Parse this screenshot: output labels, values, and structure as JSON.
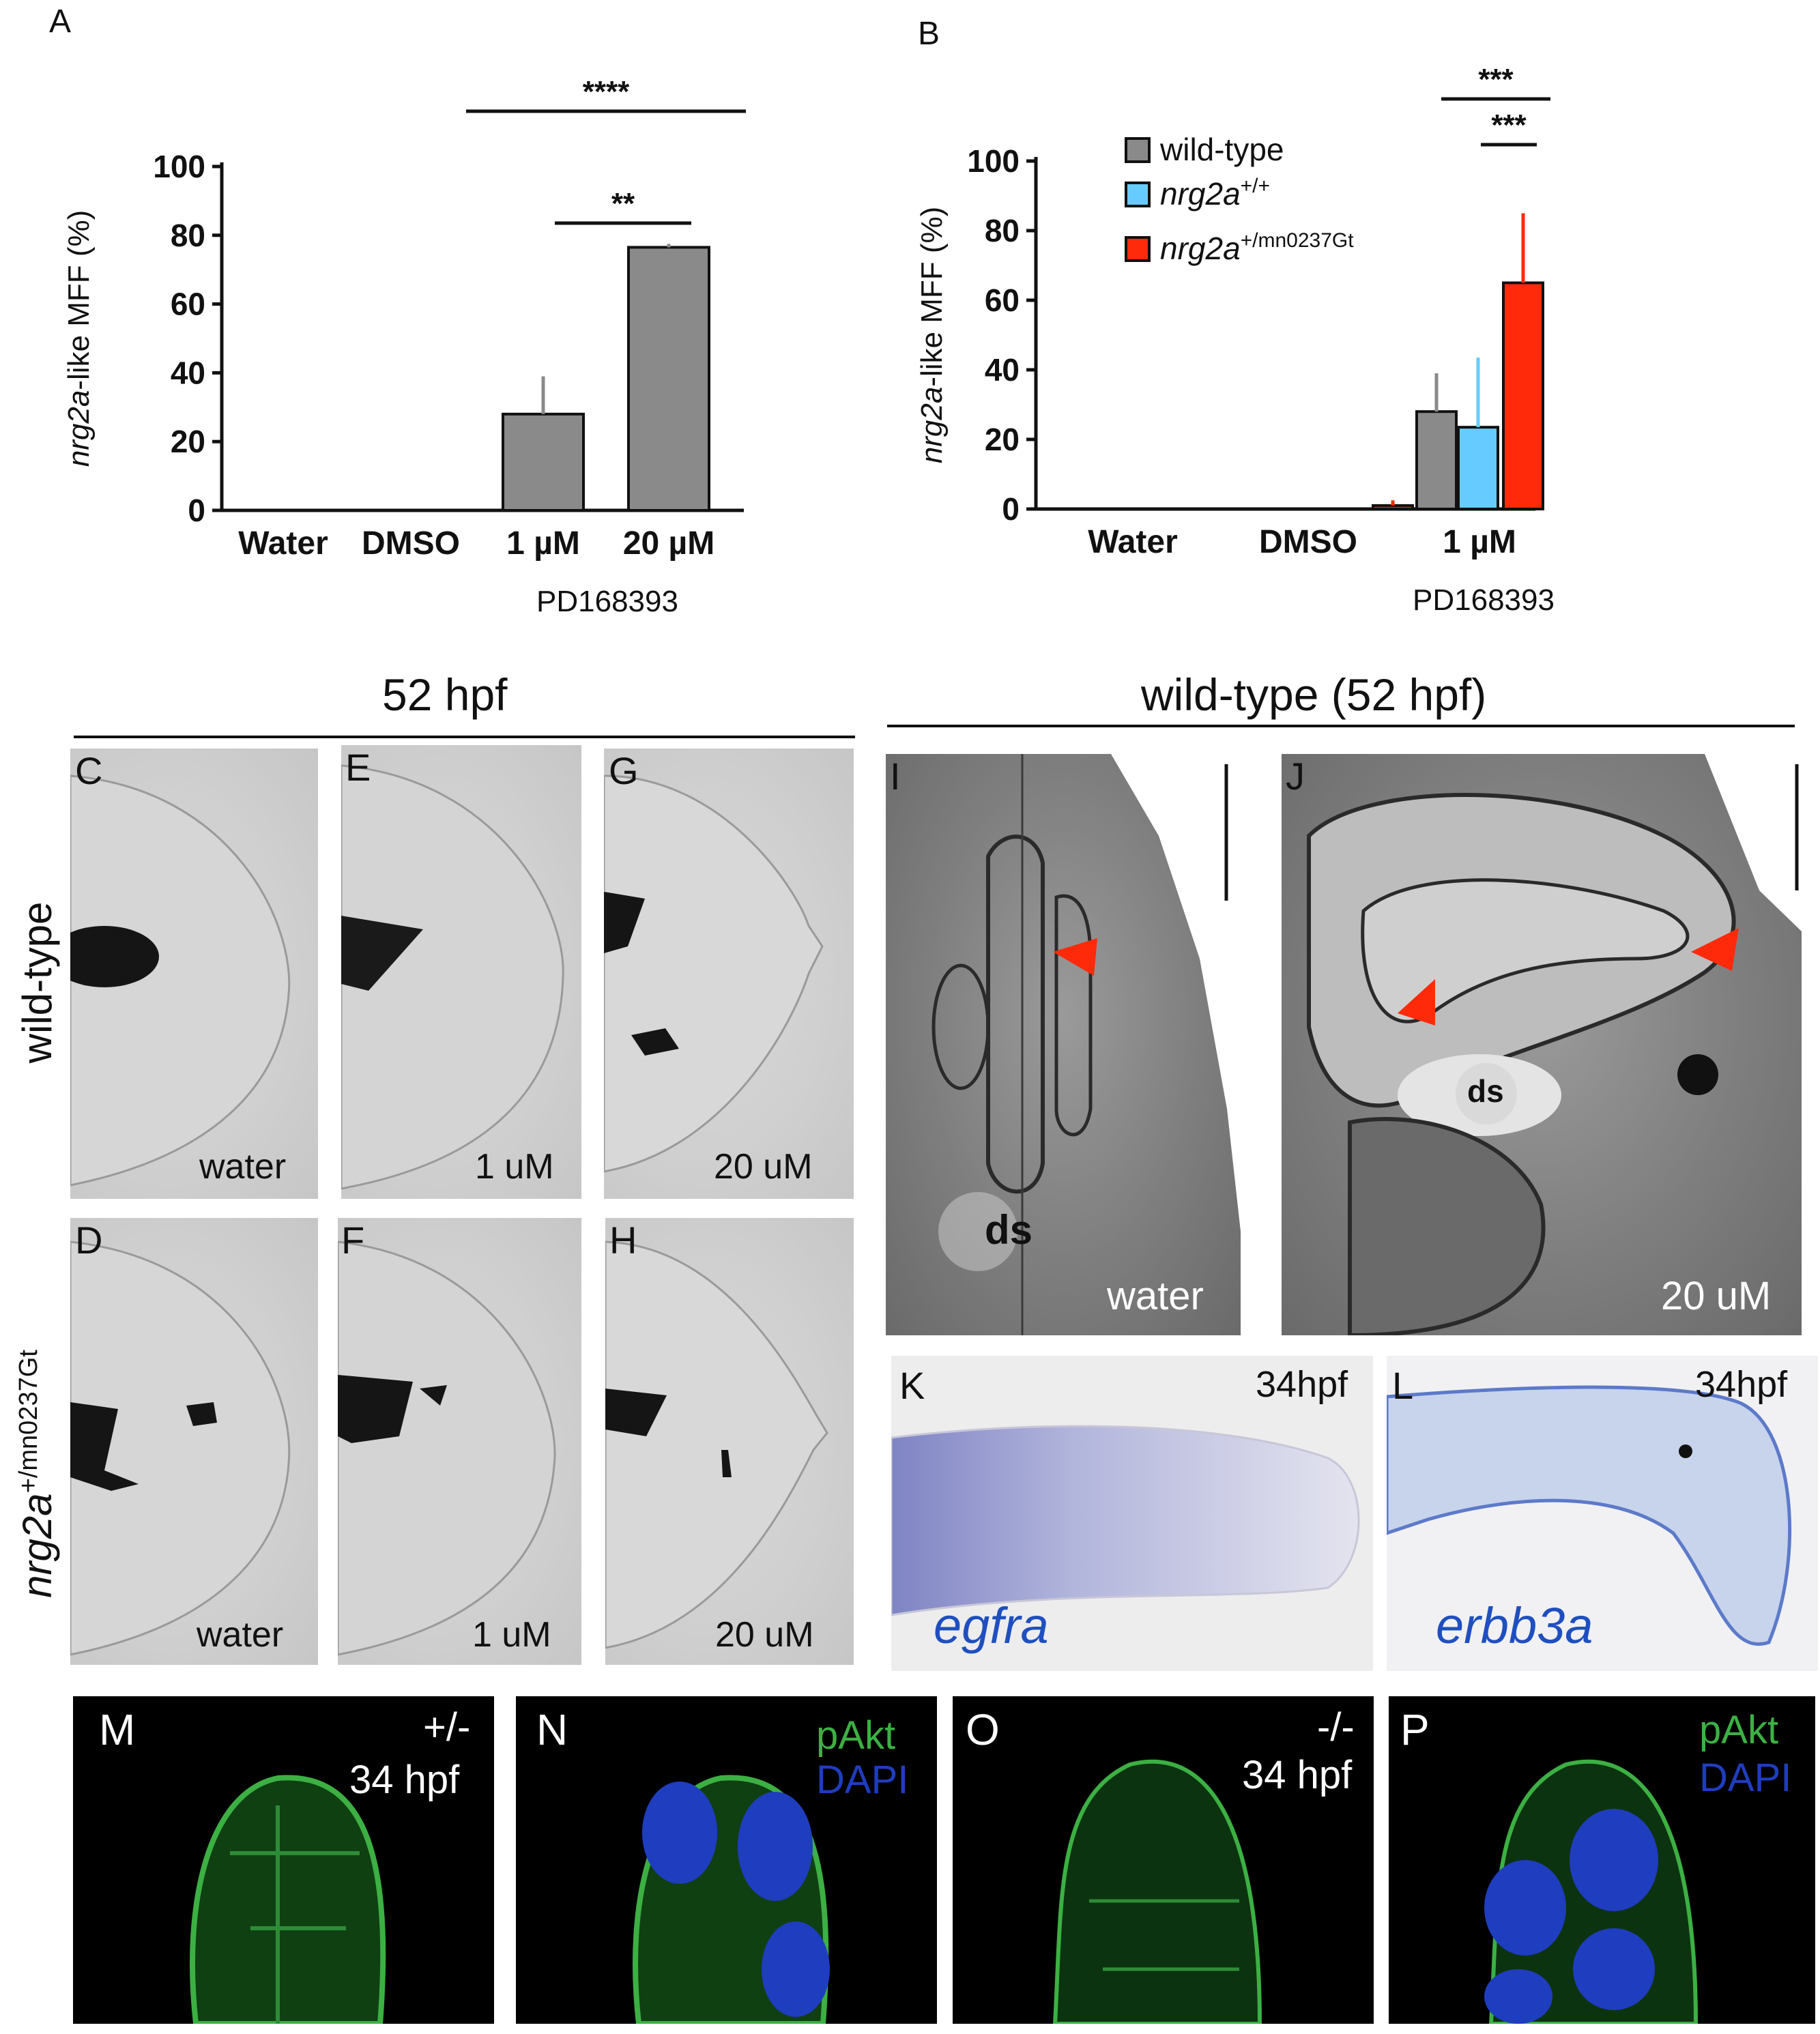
{
  "panels": {
    "A": "A",
    "B": "B",
    "C": "C",
    "D": "D",
    "E": "E",
    "F": "F",
    "G": "G",
    "H": "H",
    "I": "I",
    "J": "J",
    "K": "K",
    "L": "L",
    "M": "M",
    "N": "N",
    "O": "O",
    "P": "P"
  },
  "headers": {
    "left": "52 hpf",
    "right": "wild-type (52 hpf)"
  },
  "row_labels": {
    "wild_type": "wild-type",
    "mutant_gene": "nrg2a",
    "mutant_sup": "+/mn0237Gt"
  },
  "brightfield": {
    "C": "water",
    "E": "1 uM",
    "G": "20 uM",
    "D": "water",
    "F": "1 uM",
    "H": "20 uM"
  },
  "em": {
    "I": "water",
    "J": "20 uM",
    "ds": "ds"
  },
  "ish": {
    "K_gene": "egfra",
    "K_stage": "34hpf",
    "L_gene": "erbb3a",
    "L_stage": "34hpf"
  },
  "confocal": {
    "M_genotype": "+/-",
    "M_stage": "34 hpf",
    "N_label1": "pAkt",
    "N_label2": "DAPI",
    "O_genotype": "-/-",
    "O_stage": "34 hpf",
    "P_label1": "pAkt",
    "P_label2": "DAPI"
  },
  "colors": {
    "gray_bar": "#8a8a8a",
    "blue_bar": "#66ccff",
    "red_bar": "#ff2a0a",
    "arrowhead_red": "#ff2a0a",
    "pakt_green": "#3cb043",
    "dapi_blue": "#1f3dbf"
  },
  "chart_data": [
    {
      "type": "bar",
      "panel": "A",
      "ylabel_gene": "nrg2a",
      "ylabel_rest": "-like MFF (%)",
      "ylim": [
        0,
        100
      ],
      "yticks": [
        "0",
        "20",
        "40",
        "60",
        "80",
        "100"
      ],
      "categories": [
        "Water",
        "DMSO",
        "1 µM",
        "20 µM"
      ],
      "group_label": "PD168393",
      "series": [
        {
          "values": [
            0,
            0,
            28,
            76.5
          ],
          "errors": [
            0,
            0,
            11,
            1
          ]
        }
      ],
      "significance": [
        {
          "label": "****",
          "from": 1,
          "to": 3
        },
        {
          "label": "**",
          "from": 2,
          "to": 3
        }
      ]
    },
    {
      "type": "bar",
      "panel": "B",
      "ylabel_gene": "nrg2a",
      "ylabel_rest": "-like MFF (%)",
      "ylim": [
        0,
        100
      ],
      "yticks": [
        "0",
        "20",
        "40",
        "60",
        "80",
        "100"
      ],
      "categories": [
        "Water",
        "DMSO",
        "1 µM"
      ],
      "group_label": "PD168393",
      "series": [
        {
          "name": "wild-type",
          "values": [
            0,
            0,
            28
          ],
          "errors": [
            0,
            0,
            11
          ]
        },
        {
          "name_gene": "nrg2a",
          "name_sup": "+/+",
          "values": [
            0,
            0,
            23.5
          ],
          "errors": [
            0,
            0,
            20
          ]
        },
        {
          "name_gene": "nrg2a",
          "name_sup": "+/mn0237Gt",
          "values": [
            0,
            1,
            65
          ],
          "errors": [
            0,
            1.5,
            20
          ]
        }
      ],
      "significance": [
        {
          "label": "***",
          "pair": "wild-type vs +/mn0237Gt"
        },
        {
          "label": "***",
          "pair": "+/+ vs +/mn0237Gt"
        }
      ]
    }
  ]
}
